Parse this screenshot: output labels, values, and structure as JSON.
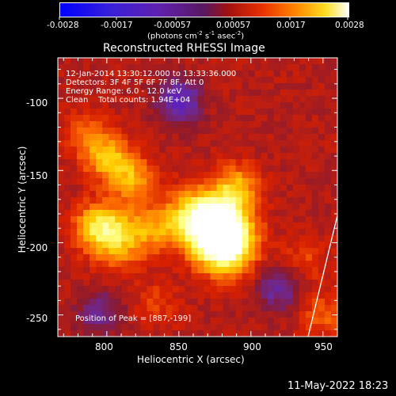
{
  "colorbar": {
    "ticks": [
      "-0.0028",
      "-0.0017",
      "-0.00057",
      "0.00057",
      "0.0017",
      "0.0028"
    ],
    "units_prefix": "(photons cm",
    "units_sup1": "-2",
    "units_mid": " s",
    "units_sup2": "-1",
    "units_mid2": " asec",
    "units_sup3": "-2",
    "units_suffix": ")"
  },
  "plot": {
    "title": "Reconstructed RHESSI Image",
    "xlabel": "Heliocentric X (arcsec)",
    "ylabel": "Heliocentric Y (arcsec)",
    "xticks": [
      "800",
      "850",
      "900",
      "950"
    ],
    "yticks": [
      "-100",
      "-150",
      "-200",
      "-250"
    ],
    "xlim": [
      766,
      960
    ],
    "ylim": [
      -265,
      -72
    ]
  },
  "annotations": {
    "time_range": "12-Jan-2014 13:30:12.000 to 13:33:36.000",
    "detectors": "Detectors: 3F 4F 5F 6F 7F 8F, Att 0",
    "energy": "Energy Range: 6.0 - 12.0 keV",
    "clean": "Clean    Total counts: 1.94E+04",
    "peak": "Position of Peak = [887,-199]"
  },
  "footer_date": "11-May-2022 18:23",
  "image_data": {
    "peak_position_arcsec": [
      887,
      -199
    ],
    "sources": [
      {
        "x": 879,
        "y": -190,
        "intensity": 1.0
      },
      {
        "x": 882,
        "y": -203,
        "intensity": 0.9
      },
      {
        "x": 862,
        "y": -182,
        "intensity": 0.72
      },
      {
        "x": 890,
        "y": -162,
        "intensity": 0.55
      },
      {
        "x": 808,
        "y": -197,
        "intensity": 0.62
      },
      {
        "x": 793,
        "y": -188,
        "intensity": 0.55
      },
      {
        "x": 800,
        "y": -141,
        "intensity": 0.58
      },
      {
        "x": 818,
        "y": -156,
        "intensity": 0.52
      },
      {
        "x": 835,
        "y": -190,
        "intensity": 0.38
      },
      {
        "x": 785,
        "y": -125,
        "intensity": 0.3
      },
      {
        "x": 950,
        "y": -250,
        "intensity": 0.3
      },
      {
        "x": 938,
        "y": -212,
        "intensity": 0.22
      },
      {
        "x": 835,
        "y": -242,
        "intensity": 0.2
      }
    ],
    "negative_regions": [
      {
        "x": 850,
        "y": -102,
        "intensity": -0.55
      },
      {
        "x": 920,
        "y": -232,
        "intensity": -0.4
      },
      {
        "x": 795,
        "y": -248,
        "intensity": -0.35
      }
    ],
    "colormap": [
      "#1010ff",
      "#5a1fc0",
      "#6a2aa0",
      "#8a1a30",
      "#d82000",
      "#ff7000",
      "#ffcc00",
      "#ffff80",
      "#ffffff"
    ]
  }
}
